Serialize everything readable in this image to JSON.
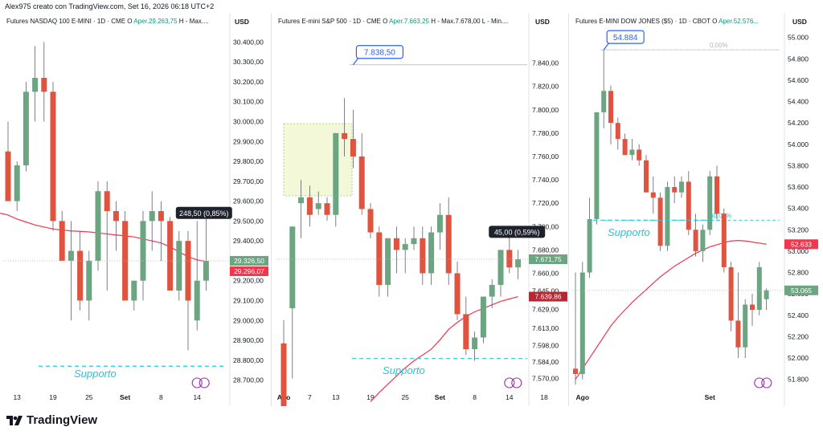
{
  "header": {
    "attribution": "Alex975 creato con TradingView.com, Set 16, 2026 06:18 UTC+2"
  },
  "footer": {
    "brand": "TradingView",
    "logo_icon": "tradingview-logo-icon"
  },
  "colors": {
    "up": "#6ca581",
    "down": "#e0533f",
    "ma": "#f2364d",
    "support": "#26c6da",
    "callout": "#2962ff",
    "label_dark": "#1e222d"
  },
  "panels": [
    {
      "id": "nasdaq",
      "title": {
        "name": "Futures NASDAQ 100 E-MINI · 1D · CME",
        "o": "O",
        "o_val": "Aper.29.263,75",
        "tail": "H - Max...."
      },
      "currency": "USD",
      "annotations": {
        "support_label": "Supporto",
        "change_label": "248,50 (0,85%)",
        "price_label_1": "29.326,50",
        "price_label_2": "29.296,07"
      }
    },
    {
      "id": "sp500",
      "title": {
        "name": "Futures E-mini S&P 500 · 1D · CME",
        "o": "O",
        "o_val": "Aper.7.663,25",
        "tail": "H - Max.7.678,00  L - Min...."
      },
      "currency": "USD",
      "annotations": {
        "support_label": "Supporto",
        "change_label": "45,00 (0,59%)",
        "high_callout": "7.838,50",
        "price_label_1": "7.671,75",
        "price_label_2": "7.639,86"
      }
    },
    {
      "id": "dow",
      "title": {
        "name": "Futures E-MINI DOW JONES ($5) · 1D · CBOT",
        "o": "O",
        "o_val": "Aper.52.576...",
        "tail": ""
      },
      "currency": "USD",
      "annotations": {
        "support_label": "Supporto",
        "high_callout": "54.884",
        "fib_0": "0,00%",
        "fib_60": "60,00%",
        "price_label_1": "53.065",
        "price_label_2": "52.633"
      }
    }
  ],
  "chart_data": [
    {
      "type": "candlestick",
      "title": "Futures NASDAQ 100 E-MINI · 1D · CME",
      "ylim": [
        28650,
        30450
      ],
      "y_ticks": [
        "30.400,00",
        "30.300,00",
        "30.200,00",
        "30.100,00",
        "30.000,00",
        "29.900,00",
        "29.800,00",
        "29.700,00",
        "29.600,00",
        "29.500,00",
        "29.400,00",
        "29.300,00",
        "29.200,00",
        "29.100,00",
        "29.000,00",
        "28.900,00",
        "28.800,00",
        "28.700,00"
      ],
      "y_tick_values": [
        30400,
        30300,
        30200,
        30100,
        30000,
        29900,
        29800,
        29700,
        29600,
        29500,
        29400,
        29300,
        29200,
        29100,
        29000,
        28900,
        28800,
        28700
      ],
      "x_ticks": [
        {
          "i": 1,
          "label": "13"
        },
        {
          "i": 5,
          "label": "19"
        },
        {
          "i": 9,
          "label": "25"
        },
        {
          "i": 13,
          "label": "Set"
        },
        {
          "i": 17,
          "label": "8"
        },
        {
          "i": 21,
          "label": "14"
        }
      ],
      "candles": [
        [
          29850,
          30000,
          29600,
          29600
        ],
        [
          29600,
          29800,
          29550,
          29780
        ],
        [
          29780,
          30200,
          29750,
          30150
        ],
        [
          30150,
          30380,
          30000,
          30220
        ],
        [
          30220,
          30400,
          30000,
          30150
        ],
        [
          30150,
          30200,
          29450,
          29500
        ],
        [
          29500,
          29550,
          29300,
          29300
        ],
        [
          29300,
          29500,
          29000,
          29350
        ],
        [
          29350,
          29450,
          29050,
          29100
        ],
        [
          29100,
          29350,
          29000,
          29300
        ],
        [
          29300,
          29700,
          29250,
          29650
        ],
        [
          29650,
          29700,
          29150,
          29550
        ],
        [
          29550,
          29600,
          29350,
          29500
        ],
        [
          29500,
          29550,
          29100,
          29100
        ],
        [
          29100,
          29200,
          29050,
          29200
        ],
        [
          29200,
          29550,
          29100,
          29500
        ],
        [
          29500,
          29650,
          29350,
          29550
        ],
        [
          29550,
          29600,
          29300,
          29500
        ],
        [
          29500,
          29520,
          29150,
          29150
        ],
        [
          29150,
          29450,
          29100,
          29400
        ],
        [
          29400,
          29450,
          28850,
          29100
        ],
        [
          29000,
          29500,
          28950,
          29200
        ],
        [
          29200,
          29520,
          29150,
          29300
        ]
      ],
      "moving_average": [
        29530,
        29510,
        29495,
        29480,
        29470,
        29460,
        29455,
        29450,
        29448,
        29445,
        29440,
        29435,
        29430,
        29425,
        29420,
        29410,
        29400,
        29390,
        29370,
        29345,
        29320,
        29305,
        29296
      ],
      "support_level": 28770,
      "change": "248,50 (0,85%)",
      "last_prices": [
        "29.326,50",
        "29.296,07"
      ]
    },
    {
      "type": "candlestick",
      "title": "Futures E-mini S&P 500 · 1D · CME",
      "ylim": [
        7560,
        7850
      ],
      "y_ticks": [
        "7.840,00",
        "7.820,00",
        "7.800,00",
        "7.780,00",
        "7.760,00",
        "7.740,00",
        "7.720,00",
        "7.700,00",
        "7.680,00",
        "7.660,00",
        "7.645,00",
        "7.629,00",
        "7.613,00",
        "7.598,00",
        "7.584,00",
        "7.570,00"
      ],
      "y_tick_values": [
        7840,
        7820,
        7800,
        7780,
        7760,
        7740,
        7720,
        7700,
        7680,
        7660,
        7645,
        7629,
        7613,
        7598,
        7584,
        7570
      ],
      "x_ticks": [
        {
          "i": 0,
          "label": "Ago"
        },
        {
          "i": 3,
          "label": "7"
        },
        {
          "i": 6,
          "label": "13"
        },
        {
          "i": 10,
          "label": "19"
        },
        {
          "i": 14,
          "label": "25"
        },
        {
          "i": 18,
          "label": "Set"
        },
        {
          "i": 22,
          "label": "8"
        },
        {
          "i": 26,
          "label": "14"
        },
        {
          "i": 30,
          "label": "18"
        }
      ],
      "candles": [
        [
          7600,
          7620,
          7540,
          7545
        ],
        [
          7630,
          7700,
          7570,
          7700
        ],
        [
          7720,
          7740,
          7690,
          7725
        ],
        [
          7725,
          7735,
          7700,
          7710
        ],
        [
          7715,
          7730,
          7710,
          7720
        ],
        [
          7720,
          7725,
          7705,
          7710
        ],
        [
          7710,
          7780,
          7700,
          7780
        ],
        [
          7780,
          7810,
          7760,
          7775
        ],
        [
          7775,
          7800,
          7750,
          7760
        ],
        [
          7760,
          7780,
          7710,
          7715
        ],
        [
          7715,
          7720,
          7690,
          7695
        ],
        [
          7695,
          7700,
          7640,
          7650
        ],
        [
          7650,
          7690,
          7640,
          7690
        ],
        [
          7690,
          7700,
          7660,
          7680
        ],
        [
          7680,
          7690,
          7660,
          7685
        ],
        [
          7685,
          7700,
          7680,
          7690
        ],
        [
          7690,
          7700,
          7650,
          7660
        ],
        [
          7660,
          7700,
          7650,
          7695
        ],
        [
          7695,
          7720,
          7680,
          7710
        ],
        [
          7710,
          7725,
          7650,
          7660
        ],
        [
          7660,
          7670,
          7620,
          7625
        ],
        [
          7625,
          7640,
          7590,
          7595
        ],
        [
          7595,
          7610,
          7585,
          7605
        ],
        [
          7605,
          7640,
          7600,
          7640
        ],
        [
          7640,
          7655,
          7630,
          7650
        ],
        [
          7650,
          7680,
          7640,
          7680
        ],
        [
          7680,
          7700,
          7660,
          7665
        ],
        [
          7665,
          7680,
          7655,
          7672
        ]
      ],
      "moving_average": [
        null,
        null,
        null,
        null,
        null,
        null,
        null,
        null,
        null,
        null,
        7550,
        7558,
        7565,
        7572,
        7579,
        7585,
        7590,
        7595,
        7603,
        7612,
        7618,
        7623,
        7627,
        7630,
        7633,
        7636,
        7638,
        7640
      ],
      "high_callout": {
        "value": 7838.5,
        "label": "7.838,50"
      },
      "support_level": 7587,
      "change": "45,00 (0,59%)",
      "last_prices": [
        "7.671,75",
        "7.639,86"
      ]
    },
    {
      "type": "candlestick",
      "title": "Futures E-MINI DOW JONES ($5) · 1D · CBOT",
      "ylim": [
        51700,
        55050
      ],
      "y_ticks": [
        "55.000",
        "54.800",
        "54.600",
        "54.400",
        "54.200",
        "54.000",
        "53.800",
        "53.600",
        "53.400",
        "53.200",
        "53.000",
        "52.800",
        "52.600",
        "52.400",
        "52.200",
        "52.000",
        "51.800"
      ],
      "y_tick_values": [
        55000,
        54800,
        54600,
        54400,
        54200,
        54000,
        53800,
        53600,
        53400,
        53200,
        53000,
        52800,
        52600,
        52400,
        52200,
        52000,
        51800
      ],
      "x_ticks": [
        {
          "i": 1,
          "label": "Ago"
        },
        {
          "i": 19,
          "label": "Set"
        }
      ],
      "candles": [
        [
          51900,
          52800,
          51750,
          51850
        ],
        [
          51850,
          52900,
          51800,
          52800
        ],
        [
          52800,
          53500,
          52750,
          53300
        ],
        [
          53300,
          54300,
          53250,
          54300
        ],
        [
          54300,
          54884,
          54150,
          54500
        ],
        [
          54500,
          54550,
          54000,
          54200
        ],
        [
          54200,
          54250,
          53950,
          54050
        ],
        [
          54050,
          54100,
          53900,
          53900
        ],
        [
          53900,
          54050,
          53850,
          53950
        ],
        [
          53950,
          54000,
          53800,
          53850
        ],
        [
          53850,
          53900,
          53550,
          53550
        ],
        [
          53550,
          53700,
          53350,
          53500
        ],
        [
          53500,
          53550,
          53000,
          53050
        ],
        [
          53050,
          53650,
          53000,
          53600
        ],
        [
          53600,
          53700,
          53450,
          53550
        ],
        [
          53550,
          53700,
          53500,
          53650
        ],
        [
          53650,
          53750,
          53150,
          53200
        ],
        [
          53200,
          53350,
          52950,
          53000
        ],
        [
          53000,
          53250,
          52900,
          53200
        ],
        [
          53200,
          53750,
          53150,
          53700
        ],
        [
          53700,
          53800,
          53300,
          53350
        ],
        [
          53350,
          53400,
          52800,
          52850
        ],
        [
          52850,
          52900,
          52250,
          52350
        ],
        [
          52350,
          52800,
          52000,
          52100
        ],
        [
          52100,
          52550,
          52000,
          52500
        ],
        [
          52500,
          52600,
          52300,
          52450
        ],
        [
          52450,
          52900,
          52400,
          52850
        ],
        [
          52550,
          52650,
          52450,
          52633
        ]
      ],
      "moving_average": [
        51800,
        51900,
        52000,
        52100,
        52200,
        52300,
        52380,
        52450,
        52520,
        52580,
        52640,
        52700,
        52760,
        52810,
        52860,
        52900,
        52940,
        52980,
        53010,
        53040,
        53060,
        53080,
        53095,
        53100,
        53095,
        53085,
        53075,
        53065
      ],
      "high_callout": {
        "value": 54884,
        "label": "54.884"
      },
      "fib_levels": [
        {
          "label": "0,00%",
          "value": 54884
        },
        {
          "label": "60,00%",
          "value": 53290
        }
      ],
      "support_level": 53290,
      "last_prices": [
        "53.065",
        "52.633"
      ]
    }
  ]
}
